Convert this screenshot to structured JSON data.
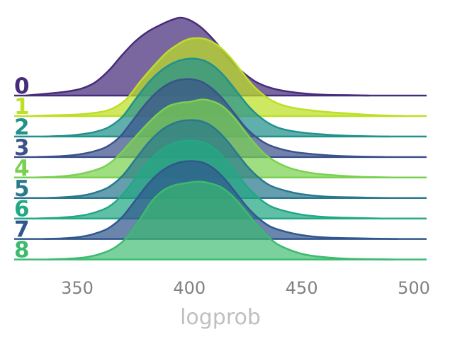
{
  "chart_data": {
    "type": "area",
    "subtype": "ridgeline",
    "title": "",
    "xlabel": "logprob",
    "ylabel": "",
    "xlim": [
      322,
      508
    ],
    "xticks": [
      350,
      400,
      450,
      500
    ],
    "grid": false,
    "legend": "none",
    "series": [
      {
        "label": "0",
        "color": "#472c7a",
        "fill_opacity": 0.72,
        "points": [
          [
            327,
            0
          ],
          [
            335,
            0.02
          ],
          [
            345,
            0.05
          ],
          [
            352,
            0.09
          ],
          [
            358,
            0.17
          ],
          [
            364,
            0.32
          ],
          [
            370,
            0.52
          ],
          [
            376,
            0.7
          ],
          [
            382,
            0.83
          ],
          [
            388,
            0.92
          ],
          [
            392,
            0.97
          ],
          [
            396,
            1.0
          ],
          [
            400,
            0.97
          ],
          [
            405,
            0.88
          ],
          [
            410,
            0.74
          ],
          [
            415,
            0.57
          ],
          [
            420,
            0.4
          ],
          [
            425,
            0.27
          ],
          [
            430,
            0.17
          ],
          [
            436,
            0.1
          ],
          [
            442,
            0.06
          ],
          [
            450,
            0.03
          ],
          [
            460,
            0.01
          ],
          [
            470,
            0.005
          ],
          [
            480,
            0
          ]
        ]
      },
      {
        "label": "1",
        "color": "#bddf26",
        "fill_opacity": 0.72,
        "points": [
          [
            329,
            0
          ],
          [
            340,
            0.01
          ],
          [
            350,
            0.02
          ],
          [
            360,
            0.05
          ],
          [
            366,
            0.1
          ],
          [
            372,
            0.22
          ],
          [
            378,
            0.44
          ],
          [
            384,
            0.64
          ],
          [
            390,
            0.82
          ],
          [
            396,
            0.94
          ],
          [
            400,
            0.99
          ],
          [
            404,
            1.0
          ],
          [
            408,
            0.98
          ],
          [
            413,
            0.9
          ],
          [
            418,
            0.76
          ],
          [
            423,
            0.58
          ],
          [
            428,
            0.4
          ],
          [
            433,
            0.27
          ],
          [
            438,
            0.18
          ],
          [
            444,
            0.12
          ],
          [
            452,
            0.08
          ],
          [
            462,
            0.05
          ],
          [
            472,
            0.03
          ],
          [
            484,
            0.01
          ],
          [
            496,
            0
          ]
        ]
      },
      {
        "label": "2",
        "color": "#21918c",
        "fill_opacity": 0.72,
        "points": [
          [
            335,
            0
          ],
          [
            345,
            0.01
          ],
          [
            352,
            0.03
          ],
          [
            358,
            0.06
          ],
          [
            364,
            0.12
          ],
          [
            370,
            0.25
          ],
          [
            376,
            0.48
          ],
          [
            382,
            0.7
          ],
          [
            388,
            0.86
          ],
          [
            394,
            0.96
          ],
          [
            400,
            1.0
          ],
          [
            406,
            0.98
          ],
          [
            411,
            0.9
          ],
          [
            416,
            0.76
          ],
          [
            421,
            0.58
          ],
          [
            426,
            0.4
          ],
          [
            431,
            0.26
          ],
          [
            436,
            0.16
          ],
          [
            441,
            0.1
          ],
          [
            448,
            0.06
          ],
          [
            458,
            0.03
          ],
          [
            470,
            0.01
          ],
          [
            489,
            0
          ]
        ]
      },
      {
        "label": "3",
        "color": "#3b528b",
        "fill_opacity": 0.72,
        "points": [
          [
            332,
            0
          ],
          [
            342,
            0.01
          ],
          [
            350,
            0.03
          ],
          [
            357,
            0.07
          ],
          [
            363,
            0.13
          ],
          [
            369,
            0.26
          ],
          [
            375,
            0.48
          ],
          [
            381,
            0.7
          ],
          [
            387,
            0.87
          ],
          [
            393,
            0.97
          ],
          [
            399,
            1.0
          ],
          [
            405,
            0.97
          ],
          [
            410,
            0.88
          ],
          [
            415,
            0.74
          ],
          [
            420,
            0.56
          ],
          [
            425,
            0.38
          ],
          [
            430,
            0.25
          ],
          [
            435,
            0.16
          ],
          [
            441,
            0.1
          ],
          [
            448,
            0.06
          ],
          [
            458,
            0.03
          ],
          [
            470,
            0.01
          ],
          [
            487,
            0
          ]
        ]
      },
      {
        "label": "4",
        "color": "#7ad151",
        "fill_opacity": 0.72,
        "points": [
          [
            330,
            0
          ],
          [
            340,
            0.01
          ],
          [
            348,
            0.03
          ],
          [
            355,
            0.07
          ],
          [
            362,
            0.14
          ],
          [
            368,
            0.27
          ],
          [
            374,
            0.46
          ],
          [
            380,
            0.65
          ],
          [
            386,
            0.82
          ],
          [
            391,
            0.92
          ],
          [
            396,
            0.96
          ],
          [
            400,
            0.97
          ],
          [
            405,
            1.0
          ],
          [
            409,
            0.99
          ],
          [
            414,
            0.93
          ],
          [
            419,
            0.8
          ],
          [
            424,
            0.62
          ],
          [
            429,
            0.44
          ],
          [
            434,
            0.29
          ],
          [
            440,
            0.18
          ],
          [
            446,
            0.11
          ],
          [
            454,
            0.06
          ],
          [
            464,
            0.03
          ],
          [
            476,
            0.01
          ],
          [
            493,
            0
          ]
        ]
      },
      {
        "label": "5",
        "color": "#2a788e",
        "fill_opacity": 0.72,
        "points": [
          [
            335,
            0
          ],
          [
            344,
            0.01
          ],
          [
            352,
            0.03
          ],
          [
            358,
            0.07
          ],
          [
            364,
            0.14
          ],
          [
            370,
            0.28
          ],
          [
            376,
            0.5
          ],
          [
            382,
            0.72
          ],
          [
            388,
            0.88
          ],
          [
            394,
            0.97
          ],
          [
            400,
            1.0
          ],
          [
            406,
            0.98
          ],
          [
            411,
            0.9
          ],
          [
            416,
            0.76
          ],
          [
            421,
            0.58
          ],
          [
            426,
            0.4
          ],
          [
            431,
            0.26
          ],
          [
            436,
            0.16
          ],
          [
            442,
            0.1
          ],
          [
            450,
            0.05
          ],
          [
            460,
            0.02
          ],
          [
            470,
            0.01
          ],
          [
            489,
            0
          ]
        ]
      },
      {
        "label": "6",
        "color": "#22a884",
        "fill_opacity": 0.72,
        "points": [
          [
            331,
            0
          ],
          [
            342,
            0.01
          ],
          [
            350,
            0.03
          ],
          [
            357,
            0.07
          ],
          [
            364,
            0.15
          ],
          [
            370,
            0.3
          ],
          [
            376,
            0.52
          ],
          [
            382,
            0.74
          ],
          [
            388,
            0.89
          ],
          [
            394,
            0.98
          ],
          [
            400,
            1.0
          ],
          [
            406,
            0.98
          ],
          [
            411,
            0.9
          ],
          [
            416,
            0.76
          ],
          [
            421,
            0.58
          ],
          [
            426,
            0.4
          ],
          [
            431,
            0.26
          ],
          [
            436,
            0.16
          ],
          [
            442,
            0.1
          ],
          [
            450,
            0.05
          ],
          [
            460,
            0.02
          ],
          [
            470,
            0.01
          ],
          [
            486,
            0
          ]
        ]
      },
      {
        "label": "7",
        "color": "#31578d",
        "fill_opacity": 0.72,
        "points": [
          [
            335,
            0
          ],
          [
            345,
            0.01
          ],
          [
            352,
            0.03
          ],
          [
            358,
            0.07
          ],
          [
            364,
            0.14
          ],
          [
            370,
            0.28
          ],
          [
            376,
            0.5
          ],
          [
            382,
            0.72
          ],
          [
            388,
            0.88
          ],
          [
            394,
            0.97
          ],
          [
            400,
            1.0
          ],
          [
            406,
            0.98
          ],
          [
            411,
            0.9
          ],
          [
            416,
            0.76
          ],
          [
            421,
            0.58
          ],
          [
            426,
            0.4
          ],
          [
            431,
            0.26
          ],
          [
            436,
            0.16
          ],
          [
            442,
            0.1
          ],
          [
            450,
            0.05
          ],
          [
            460,
            0.02
          ],
          [
            472,
            0.01
          ],
          [
            493,
            0
          ]
        ]
      },
      {
        "label": "8",
        "color": "#3bbb6e",
        "fill_opacity": 0.68,
        "points": [
          [
            337,
            0
          ],
          [
            346,
            0.01
          ],
          [
            354,
            0.03
          ],
          [
            360,
            0.07
          ],
          [
            366,
            0.14
          ],
          [
            372,
            0.28
          ],
          [
            378,
            0.52
          ],
          [
            383,
            0.74
          ],
          [
            388,
            0.88
          ],
          [
            393,
            0.95
          ],
          [
            398,
            0.98
          ],
          [
            404,
            1.0
          ],
          [
            409,
            0.98
          ],
          [
            414,
            0.93
          ],
          [
            419,
            0.82
          ],
          [
            424,
            0.66
          ],
          [
            429,
            0.48
          ],
          [
            434,
            0.32
          ],
          [
            439,
            0.2
          ],
          [
            445,
            0.12
          ],
          [
            452,
            0.06
          ],
          [
            460,
            0.03
          ],
          [
            470,
            0.01
          ],
          [
            491,
            0
          ]
        ]
      }
    ]
  }
}
